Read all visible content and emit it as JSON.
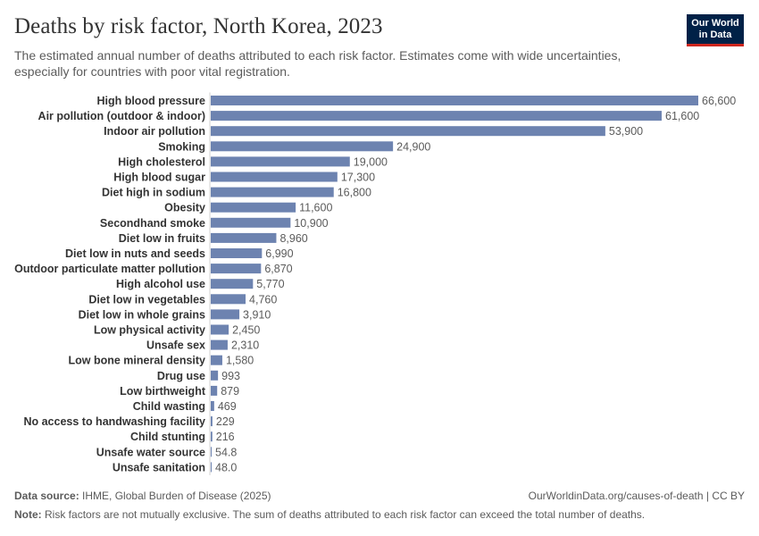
{
  "header": {
    "title": "Deaths by risk factor, North Korea, 2023",
    "subtitle": "The estimated annual number of deaths attributed to each risk factor. Estimates come with wide uncertainties, especially for countries with poor vital registration.",
    "logo_line1": "Our World",
    "logo_line2": "in Data"
  },
  "footer": {
    "source_label": "Data source:",
    "source_text": "IHME, Global Burden of Disease (2025)",
    "url_text": "OurWorldinData.org/causes-of-death | CC BY",
    "note_label": "Note:",
    "note_text": "Risk factors are not mutually exclusive. The sum of deaths attributed to each risk factor can exceed the total number of deaths."
  },
  "colors": {
    "bar": "#6d83b0",
    "axis": "#d0d0d0",
    "label": "#333333",
    "value": "#5b5b5b"
  },
  "chart_data": {
    "type": "bar",
    "orientation": "horizontal",
    "categories": [
      "High blood pressure",
      "Air pollution (outdoor & indoor)",
      "Indoor air pollution",
      "Smoking",
      "High cholesterol",
      "High blood sugar",
      "Diet high in sodium",
      "Obesity",
      "Secondhand smoke",
      "Diet low in fruits",
      "Diet low in nuts and seeds",
      "Outdoor particulate matter pollution",
      "High alcohol use",
      "Diet low in vegetables",
      "Diet low in whole grains",
      "Low physical activity",
      "Unsafe sex",
      "Low bone mineral density",
      "Drug use",
      "Low birthweight",
      "Child wasting",
      "No access to handwashing facility",
      "Child stunting",
      "Unsafe water source",
      "Unsafe sanitation"
    ],
    "values": [
      66600,
      61600,
      53900,
      24900,
      19000,
      17300,
      16800,
      11600,
      10900,
      8960,
      6990,
      6870,
      5770,
      4760,
      3910,
      2450,
      2310,
      1580,
      993,
      879,
      469,
      229,
      216,
      54.8,
      48.0
    ],
    "value_labels": [
      "66,600",
      "61,600",
      "53,900",
      "24,900",
      "19,000",
      "17,300",
      "16,800",
      "11,600",
      "10,900",
      "8,960",
      "6,990",
      "6,870",
      "5,770",
      "4,760",
      "3,910",
      "2,450",
      "2,310",
      "1,580",
      "993",
      "879",
      "469",
      "229",
      "216",
      "54.8",
      "48.0"
    ],
    "xlim": [
      0,
      66600
    ],
    "grid": false
  }
}
